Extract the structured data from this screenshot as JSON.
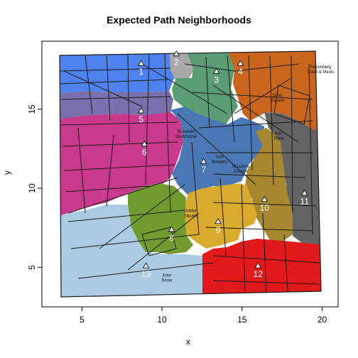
{
  "title": "Expected Path Neighborhoods",
  "xlabel": "x",
  "ylabel": "y",
  "chart_data": {
    "type": "scatter",
    "title": "Expected Path Neighborhoods",
    "xlabel": "x",
    "ylabel": "y",
    "xlim": [
      2.5,
      21.0
    ],
    "ylim": [
      2.5,
      19.3
    ],
    "xticks": [
      5,
      10,
      15,
      20
    ],
    "yticks": [
      5,
      10,
      15
    ],
    "pumps": [
      {
        "id": "1",
        "x": 8.7,
        "y": 17.9,
        "color": "#4f81ef"
      },
      {
        "id": "2",
        "x": 10.9,
        "y": 18.5,
        "color": "#a9a9a9"
      },
      {
        "id": "3",
        "x": 13.4,
        "y": 17.4,
        "color": "#5a9d74"
      },
      {
        "id": "4",
        "x": 14.9,
        "y": 17.9,
        "color": "#c9651c"
      },
      {
        "id": "5",
        "x": 8.7,
        "y": 14.9,
        "color": "#7a70ad"
      },
      {
        "id": "6",
        "x": 8.9,
        "y": 12.8,
        "color": "#c93a8c"
      },
      {
        "id": "7",
        "x": 12.6,
        "y": 11.7,
        "color": "#4a78b4"
      },
      {
        "id": "8",
        "x": 10.6,
        "y": 7.4,
        "color": "#6f9b2f"
      },
      {
        "id": "9",
        "x": 13.5,
        "y": 7.9,
        "color": "#d8aa2e"
      },
      {
        "id": "10",
        "x": 16.4,
        "y": 9.3,
        "color": "#a68730"
      },
      {
        "id": "11",
        "x": 18.9,
        "y": 9.7,
        "color": "#636363"
      },
      {
        "id": "12",
        "x": 16.0,
        "y": 5.1,
        "color": "#e31a1c"
      },
      {
        "id": "13",
        "x": 9.0,
        "y": 5.1,
        "color": "#aacbe2"
      }
    ],
    "landmarks": [
      {
        "name": "Falconberg\nCourt & Mews",
        "x": 19.9,
        "y": 17.6
      },
      {
        "name": "Soho\nSquare",
        "x": 17.2,
        "y": 15.8
      },
      {
        "name": "St James\nWorkhouse",
        "x": 11.5,
        "y": 13.5
      },
      {
        "name": "Karl\nMarx",
        "x": 17.3,
        "y": 13.4
      },
      {
        "name": "Lion\nBrewery",
        "x": 13.6,
        "y": 11.9
      },
      {
        "name": "St Luke's\nChurch",
        "x": 14.9,
        "y": 11.3
      },
      {
        "name": "Golden\nSquare",
        "x": 11.8,
        "y": 8.5
      },
      {
        "name": "John\nSnow",
        "x": 10.3,
        "y": 4.4
      }
    ]
  }
}
